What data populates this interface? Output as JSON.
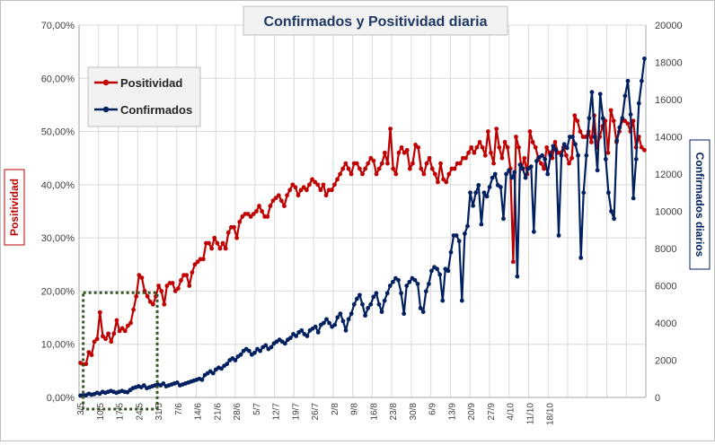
{
  "chart_data": {
    "type": "line",
    "title": "Confirmados  y Positividad  diaria",
    "ylabel_left": "Positividad",
    "ylabel_right": "Confirmados diarios",
    "xlabel": "",
    "x_tick_labels": [
      "3/5",
      "10/5",
      "17/5",
      "24/5",
      "31/5",
      "7/6",
      "14/6",
      "21/6",
      "28/6",
      "5/7",
      "12/7",
      "19/7",
      "26/7",
      "2/8",
      "9/8",
      "16/8",
      "23/8",
      "30/8",
      "6/9",
      "13/9",
      "20/9",
      "27/9",
      "4/10",
      "11/10",
      "18/10"
    ],
    "ylim_left": [
      0,
      0.7
    ],
    "yticks_left": [
      "0,00%",
      "10,00%",
      "20,00%",
      "30,00%",
      "40,00%",
      "50,00%",
      "60,00%",
      "70,00%"
    ],
    "ylim_right": [
      0,
      20000
    ],
    "yticks_right": [
      "0",
      "2000",
      "4000",
      "6000",
      "8000",
      "10000",
      "12000",
      "14000",
      "16000",
      "18000",
      "20000"
    ],
    "grid": true,
    "legend_position": "top-left",
    "series": [
      {
        "name": "Positividad",
        "axis": "left",
        "color": "#c00000",
        "values": [
          0.065,
          0.062,
          0.063,
          0.085,
          0.08,
          0.105,
          0.11,
          0.16,
          0.115,
          0.11,
          0.12,
          0.105,
          0.12,
          0.145,
          0.125,
          0.13,
          0.125,
          0.135,
          0.14,
          0.165,
          0.19,
          0.23,
          0.225,
          0.2,
          0.19,
          0.18,
          0.175,
          0.19,
          0.21,
          0.2,
          0.175,
          0.21,
          0.215,
          0.215,
          0.2,
          0.205,
          0.22,
          0.23,
          0.23,
          0.21,
          0.235,
          0.25,
          0.255,
          0.26,
          0.26,
          0.29,
          0.29,
          0.28,
          0.3,
          0.29,
          0.28,
          0.29,
          0.28,
          0.31,
          0.32,
          0.32,
          0.3,
          0.33,
          0.34,
          0.345,
          0.345,
          0.34,
          0.345,
          0.35,
          0.36,
          0.35,
          0.34,
          0.34,
          0.36,
          0.37,
          0.375,
          0.38,
          0.37,
          0.36,
          0.38,
          0.39,
          0.4,
          0.395,
          0.38,
          0.39,
          0.395,
          0.39,
          0.4,
          0.41,
          0.405,
          0.4,
          0.39,
          0.4,
          0.38,
          0.39,
          0.39,
          0.4,
          0.41,
          0.42,
          0.43,
          0.44,
          0.43,
          0.42,
          0.44,
          0.44,
          0.43,
          0.42,
          0.43,
          0.44,
          0.45,
          0.445,
          0.42,
          0.43,
          0.44,
          0.46,
          0.44,
          0.505,
          0.43,
          0.42,
          0.46,
          0.47,
          0.46,
          0.465,
          0.43,
          0.44,
          0.475,
          0.47,
          0.43,
          0.42,
          0.44,
          0.45,
          0.43,
          0.42,
          0.405,
          0.44,
          0.41,
          0.405,
          0.42,
          0.43,
          0.43,
          0.44,
          0.44,
          0.45,
          0.45,
          0.46,
          0.47,
          0.46,
          0.47,
          0.48,
          0.47,
          0.455,
          0.5,
          0.46,
          0.44,
          0.505,
          0.47,
          0.45,
          0.48,
          0.47,
          0.43,
          0.255,
          0.49,
          0.47,
          0.43,
          0.45,
          0.42,
          0.5,
          0.48,
          0.47,
          0.45,
          0.44,
          0.43,
          0.47,
          0.46,
          0.45,
          0.48,
          0.46,
          0.46,
          0.47,
          0.455,
          0.44,
          0.45,
          0.53,
          0.52,
          0.5,
          0.49,
          0.49,
          0.5,
          0.48,
          0.53,
          0.47,
          0.49,
          0.51,
          0.52,
          0.46,
          0.54,
          0.52,
          0.48,
          0.5,
          0.52,
          0.52,
          0.515,
          0.5,
          0.52,
          0.47,
          0.49,
          0.47,
          0.465
        ]
      },
      {
        "name": "Confirmados",
        "axis": "right",
        "color": "#002060",
        "values": [
          100,
          100,
          120,
          200,
          150,
          180,
          250,
          200,
          300,
          250,
          300,
          350,
          300,
          250,
          300,
          350,
          300,
          280,
          400,
          500,
          550,
          600,
          550,
          650,
          500,
          550,
          600,
          650,
          700,
          650,
          750,
          600,
          650,
          700,
          750,
          800,
          650,
          700,
          750,
          800,
          850,
          900,
          950,
          1000,
          950,
          1200,
          1300,
          1400,
          1300,
          1500,
          1600,
          1550,
          1700,
          1800,
          2000,
          2100,
          2000,
          2200,
          2300,
          2500,
          2600,
          2500,
          2300,
          2400,
          2600,
          2500,
          2700,
          2800,
          2600,
          2700,
          2900,
          3000,
          3100,
          3000,
          2900,
          3100,
          3200,
          3400,
          3300,
          3500,
          3600,
          3400,
          3300,
          3600,
          3700,
          3800,
          3500,
          3900,
          4000,
          4200,
          4000,
          3800,
          3900,
          4300,
          4500,
          4100,
          3600,
          4200,
          4500,
          5000,
          5300,
          5500,
          5000,
          4400,
          4800,
          5000,
          5400,
          5600,
          5000,
          4600,
          5200,
          5600,
          6000,
          6200,
          6400,
          6300,
          5600,
          4500,
          6000,
          6200,
          6400,
          6300,
          6100,
          4800,
          4600,
          5700,
          6100,
          6800,
          7000,
          6900,
          6600,
          5200,
          6900,
          6800,
          7800,
          8700,
          8700,
          8400,
          5200,
          8800,
          9200,
          11000,
          10300,
          11000,
          11400,
          9300,
          11000,
          10800,
          11300,
          11800,
          12000,
          11400,
          11300,
          9600,
          12000,
          12200,
          11800,
          12100,
          6500,
          12500,
          12300,
          11800,
          12300,
          12400,
          8900,
          12700,
          12900,
          13000,
          12800,
          12000,
          13000,
          13500,
          13300,
          8700,
          13000,
          13600,
          13400,
          14000,
          14000,
          13600,
          13000,
          7500,
          11000,
          13000,
          15000,
          16400,
          14000,
          12200,
          16300,
          15000,
          12800,
          11000,
          10000,
          9600,
          13800,
          14500,
          15000,
          16200,
          17000,
          15200,
          10700,
          12800,
          15800,
          17000,
          18200
        ],
        "start_index": 0
      }
    ]
  }
}
